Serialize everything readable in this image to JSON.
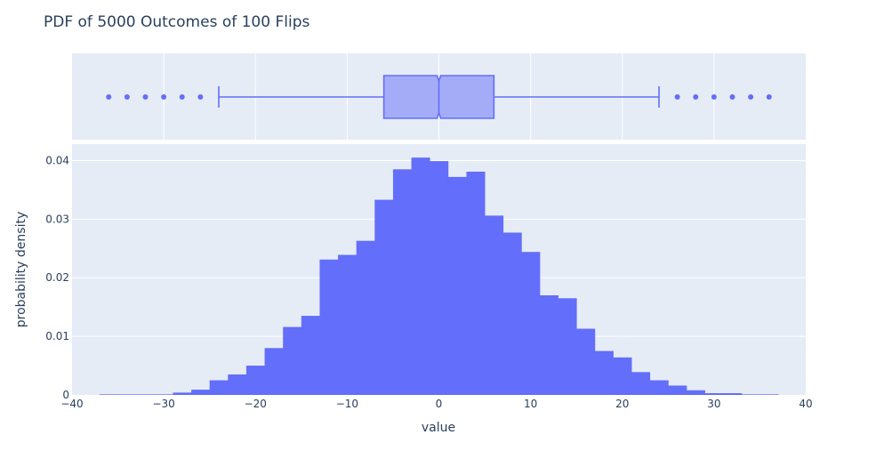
{
  "title": "PDF of 5000 Outcomes of 100 Flips",
  "colors": {
    "bar": "#636efa",
    "box_fill": "#a5acf7",
    "box_line": "#636efa",
    "plot_bg": "#e5ecf6",
    "grid": "#ffffff",
    "text": "#2a3f5f"
  },
  "chart_data": [
    {
      "type": "box",
      "orientation": "horizontal",
      "notched": true,
      "q1": -6,
      "median": 0,
      "q3": 6,
      "notch_low": -0.2,
      "notch_high": 0.2,
      "whisker_low": -24,
      "whisker_high": 24,
      "outliers": [
        -36,
        -34,
        -32,
        -30,
        -28,
        -26,
        26,
        28,
        30,
        32,
        34,
        36
      ],
      "xlim": [
        -40,
        40
      ],
      "grid": true
    },
    {
      "type": "histogram",
      "title": "PDF of 5000 Outcomes of 100 Flips",
      "xlabel": "value",
      "ylabel": "probability density",
      "xlim": [
        -40,
        40
      ],
      "ylim": [
        0,
        0.0428
      ],
      "bin_width": 2,
      "bin_starts": [
        -37,
        -35,
        -33,
        -31,
        -29,
        -27,
        -25,
        -23,
        -21,
        -19,
        -17,
        -15,
        -13,
        -11,
        -9,
        -7,
        -5,
        -3,
        -1,
        1,
        3,
        5,
        7,
        9,
        11,
        13,
        15,
        17,
        19,
        21,
        23,
        25,
        27,
        29,
        31,
        33,
        35
      ],
      "values": [
        0.0001,
        0.0001,
        0.0001,
        0.0001,
        0.0004,
        0.0009,
        0.0025,
        0.0035,
        0.005,
        0.008,
        0.0116,
        0.0135,
        0.0231,
        0.0239,
        0.0263,
        0.0333,
        0.0385,
        0.0405,
        0.0399,
        0.0372,
        0.0381,
        0.0306,
        0.0277,
        0.0244,
        0.017,
        0.0165,
        0.0113,
        0.0075,
        0.0064,
        0.0039,
        0.0025,
        0.0016,
        0.0008,
        0.0003,
        0.0003,
        0.0001,
        0.0001
      ],
      "x_ticks": [
        "−40",
        "−30",
        "−20",
        "−10",
        "0",
        "10",
        "20",
        "30",
        "40"
      ],
      "x_tick_values": [
        -40,
        -30,
        -20,
        -10,
        0,
        10,
        20,
        30,
        40
      ],
      "y_ticks": [
        "0",
        "0.01",
        "0.02",
        "0.03",
        "0.04"
      ],
      "y_tick_values": [
        0,
        0.01,
        0.02,
        0.03,
        0.04
      ],
      "grid": true
    }
  ]
}
